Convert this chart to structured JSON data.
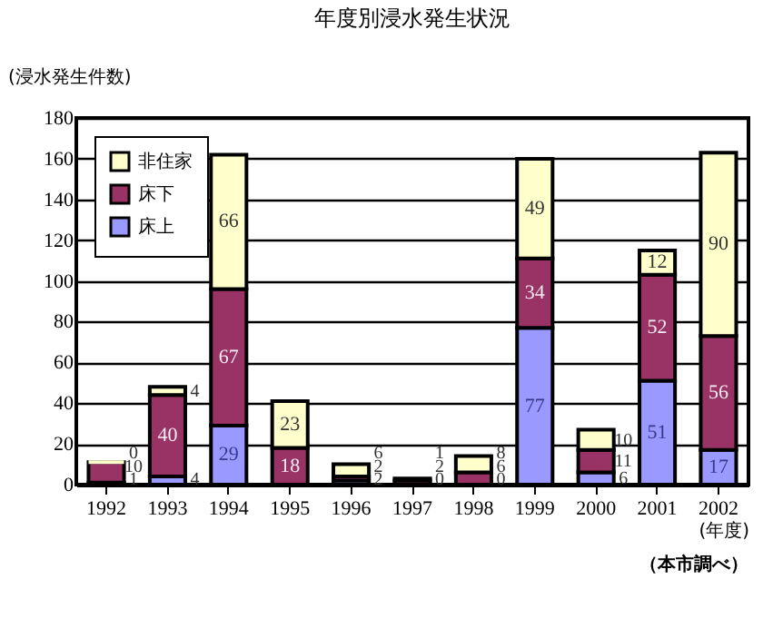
{
  "chart_data": {
    "type": "bar",
    "title": "年度別浸水発生状況",
    "ylabel": "(浸水発生件数)",
    "xlabel": "(年度)",
    "annotations": [
      "（本市調べ）"
    ],
    "categories": [
      "1992",
      "1993",
      "1994",
      "1995",
      "1996",
      "1997",
      "1998",
      "1999",
      "2000",
      "2001",
      "2002"
    ],
    "stacked": true,
    "series": [
      {
        "name": "床上",
        "color": "#9999ff",
        "values": [
          1,
          4,
          29,
          null,
          2,
          0,
          0,
          77,
          6,
          51,
          17
        ]
      },
      {
        "name": "床下",
        "color": "#993366",
        "values": [
          10,
          40,
          67,
          18,
          2,
          2,
          6,
          34,
          11,
          52,
          56
        ]
      },
      {
        "name": "非住家",
        "color": "#ffffcc",
        "values": [
          0,
          4,
          66,
          23,
          6,
          1,
          8,
          49,
          10,
          12,
          90
        ]
      }
    ],
    "ylim": [
      0,
      180
    ],
    "yticks": [
      0,
      20,
      40,
      60,
      80,
      100,
      120,
      140,
      160,
      180
    ],
    "grid": "y",
    "legend": "top left",
    "data_labels": true
  }
}
